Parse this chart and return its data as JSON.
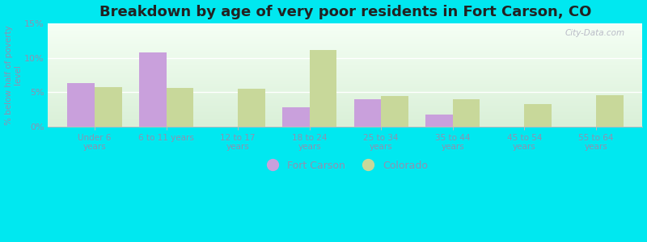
{
  "title": "Breakdown by age of very poor residents in Fort Carson, CO",
  "ylabel": "% below half of poverty\nlevel",
  "categories": [
    "Under 6\nyears",
    "6 to 11 years",
    "12 to 17\nyears",
    "18 to 24\nyears",
    "25 to 34\nyears",
    "35 to 44\nyears",
    "45 to 54\nyears",
    "55 to 64\nyears"
  ],
  "fort_carson": [
    6.3,
    10.8,
    0.0,
    2.8,
    4.0,
    1.7,
    0.0,
    0.0
  ],
  "colorado": [
    5.7,
    5.6,
    5.5,
    11.1,
    4.4,
    3.9,
    3.2,
    4.5
  ],
  "fort_carson_color": "#c9a0dc",
  "colorado_color": "#c8d89a",
  "background_outer": "#00e8f0",
  "background_plot_top": "#f5fff5",
  "background_plot_bottom": "#daf0d8",
  "ylim": [
    0,
    15
  ],
  "yticks": [
    0,
    5,
    10,
    15
  ],
  "ytick_labels": [
    "0%",
    "5%",
    "10%",
    "15%"
  ],
  "title_fontsize": 13,
  "tick_color": "#9090b0",
  "legend_labels": [
    "Fort Carson",
    "Colorado"
  ],
  "bar_width": 0.38,
  "watermark": "City-Data.com"
}
